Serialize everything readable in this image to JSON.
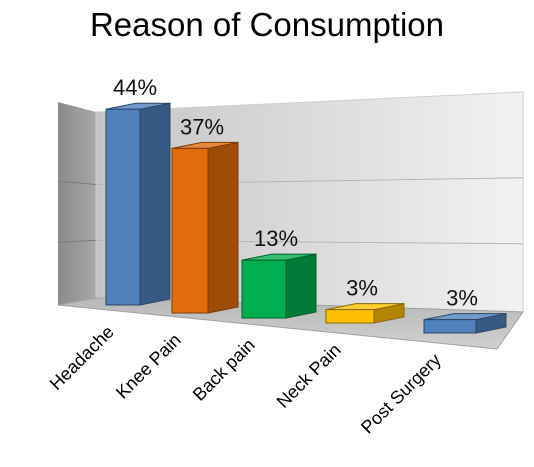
{
  "chart_data": {
    "type": "bar",
    "title": "Reason of Consumption",
    "categories": [
      "Headache",
      "Knee Pain",
      "Back pain",
      "Neck Pain",
      "Post Surgery"
    ],
    "values": [
      44,
      37,
      13,
      3,
      3
    ],
    "value_labels": [
      "44%",
      "37%",
      "13%",
      "3%",
      "3%"
    ],
    "unit": "%",
    "ylim": [
      0,
      50
    ],
    "grid": true,
    "three_d": true,
    "legend": "none",
    "colors": [
      "#4f81bd",
      "#e36c0a",
      "#00b050",
      "#ffc000",
      "#4f81bd"
    ]
  }
}
